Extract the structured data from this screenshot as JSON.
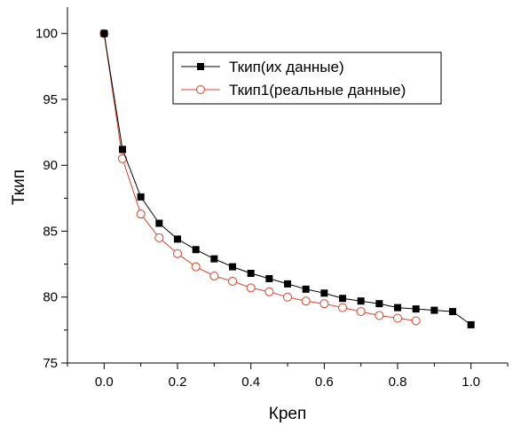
{
  "chart_data": {
    "type": "line",
    "xlabel": "Креп",
    "ylabel": "Ткип",
    "xlim": [
      -0.1,
      1.1
    ],
    "ylim": [
      75,
      102
    ],
    "xticks": [
      "0.0",
      "0.2",
      "0.4",
      "0.6",
      "0.8",
      "1.0"
    ],
    "yticks": [
      "75",
      "80",
      "85",
      "90",
      "95",
      "100"
    ],
    "grid": false,
    "legend_position": "top-right",
    "series": [
      {
        "name": "Ткип(их данные)",
        "color": "#000000",
        "marker": "filled-square",
        "x": [
          0.0,
          0.05,
          0.1,
          0.15,
          0.2,
          0.25,
          0.3,
          0.35,
          0.4,
          0.45,
          0.5,
          0.55,
          0.6,
          0.65,
          0.7,
          0.75,
          0.8,
          0.85,
          0.9,
          0.95,
          1.0
        ],
        "y": [
          100.0,
          91.2,
          87.6,
          85.6,
          84.4,
          83.6,
          82.9,
          82.3,
          81.8,
          81.4,
          81.0,
          80.6,
          80.3,
          79.9,
          79.7,
          79.5,
          79.2,
          79.1,
          79.0,
          78.9,
          77.9
        ]
      },
      {
        "name": "Ткип1(реальные данные)",
        "color": "#d9442b",
        "marker": "open-circle",
        "x": [
          0.0,
          0.05,
          0.1,
          0.15,
          0.2,
          0.25,
          0.3,
          0.35,
          0.4,
          0.45,
          0.5,
          0.55,
          0.6,
          0.65,
          0.7,
          0.75,
          0.8,
          0.85
        ],
        "y": [
          100.0,
          90.5,
          86.3,
          84.5,
          83.3,
          82.3,
          81.6,
          81.2,
          80.7,
          80.4,
          80.0,
          79.7,
          79.5,
          79.2,
          78.9,
          78.6,
          78.4,
          78.2
        ]
      }
    ]
  }
}
